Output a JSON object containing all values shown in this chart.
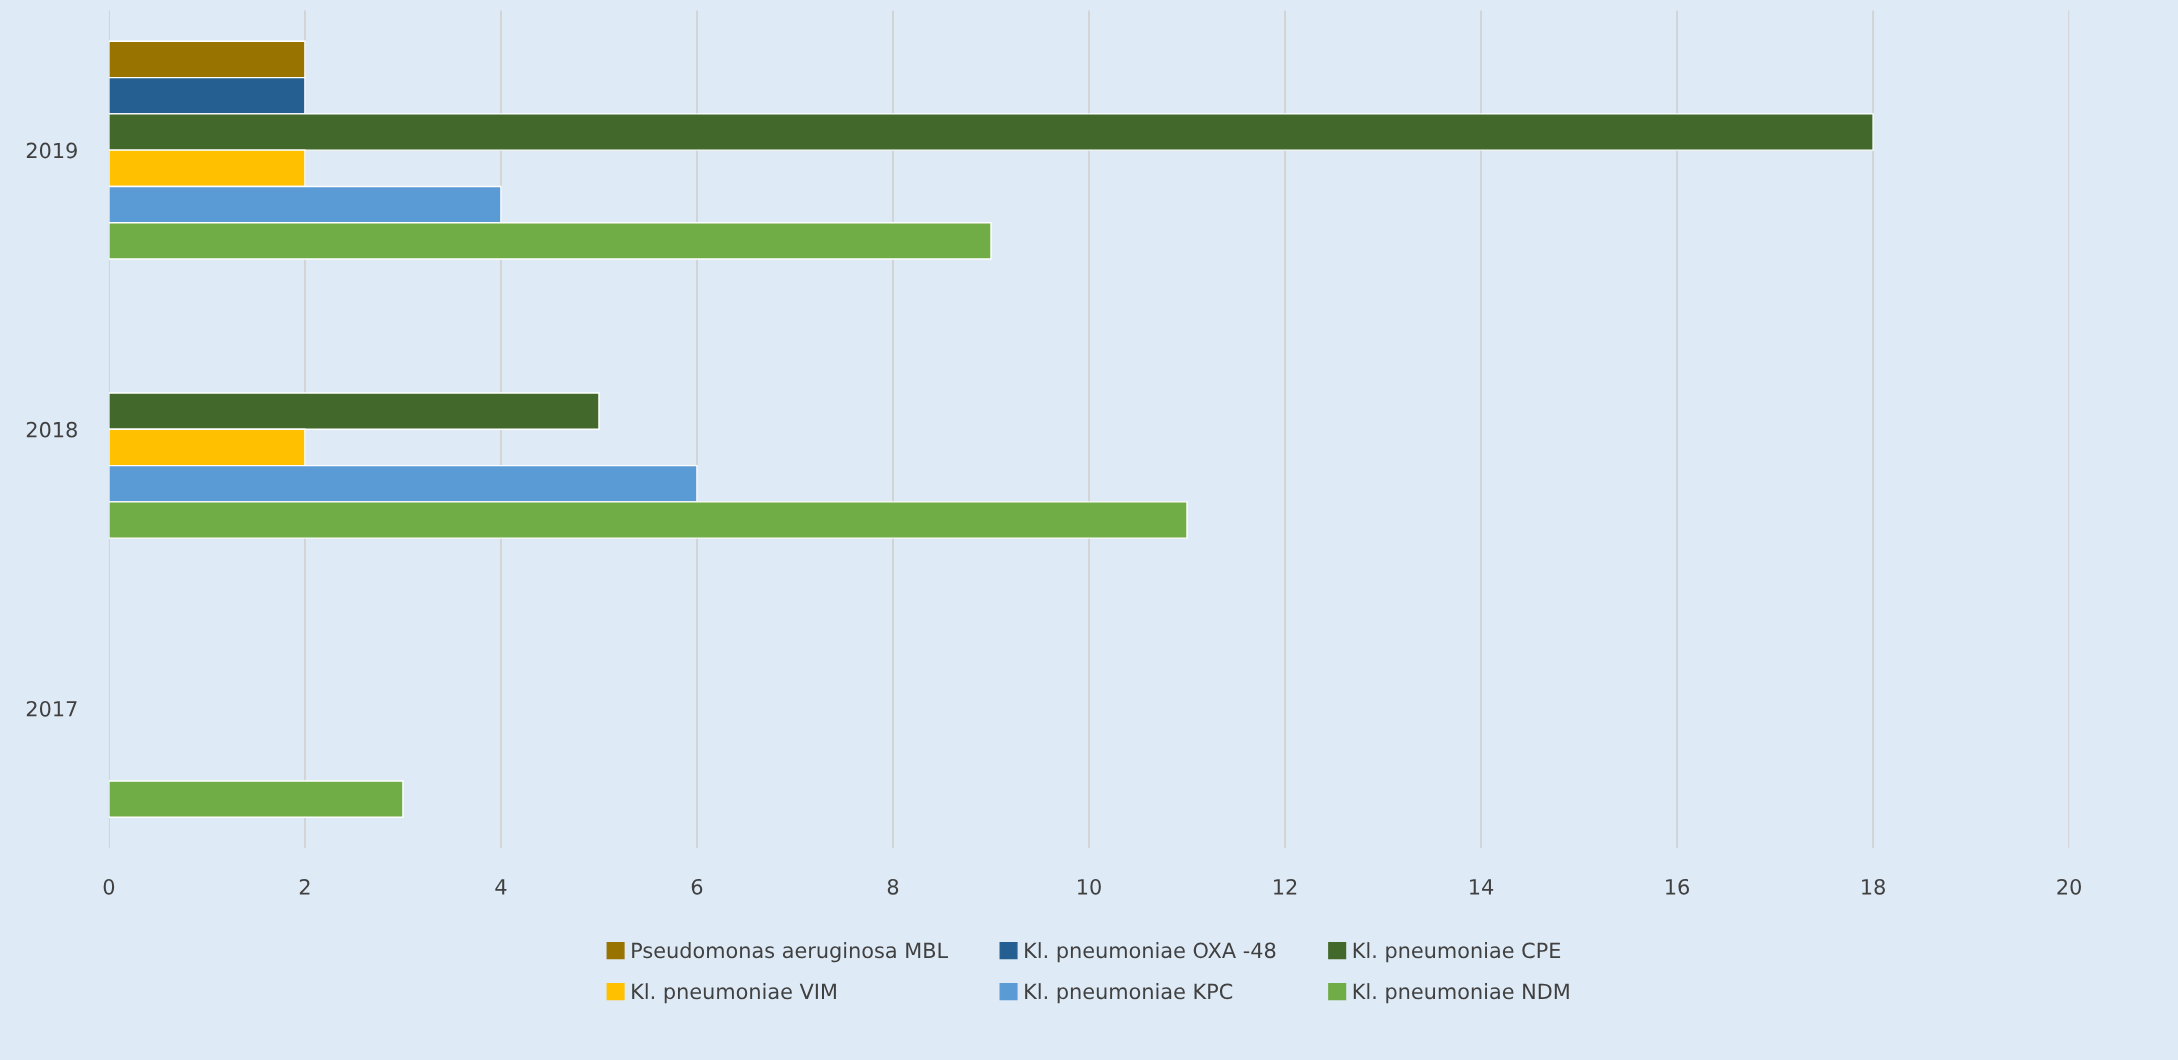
{
  "chart_data": {
    "type": "bar",
    "orientation": "horizontal",
    "categories": [
      "2019",
      "2018",
      "2017"
    ],
    "series": [
      {
        "name": "Pseudomonas aeruginosa MBL",
        "color": "#997300",
        "values": [
          2,
          null,
          null
        ]
      },
      {
        "name": "Kl. pneumoniae OXA -48",
        "color": "#255e91",
        "values": [
          2,
          null,
          null
        ]
      },
      {
        "name": "Kl. pneumoniae CPE",
        "color": "#43682b",
        "values": [
          18,
          5,
          null
        ]
      },
      {
        "name": "Kl. pneumoniae VIM",
        "color": "#ffc000",
        "values": [
          2,
          2,
          null
        ]
      },
      {
        "name": "Kl. pneumoniae KPC",
        "color": "#5b9bd5",
        "values": [
          4,
          6,
          null
        ]
      },
      {
        "name": "Kl. pneumoniae NDM",
        "color": "#70ad47",
        "values": [
          9,
          11,
          3
        ]
      }
    ],
    "xlim": [
      0,
      20
    ],
    "xticks": [
      0,
      2,
      4,
      6,
      8,
      10,
      12,
      14,
      16,
      18,
      20
    ],
    "grid": "x",
    "legend": "bottom"
  }
}
